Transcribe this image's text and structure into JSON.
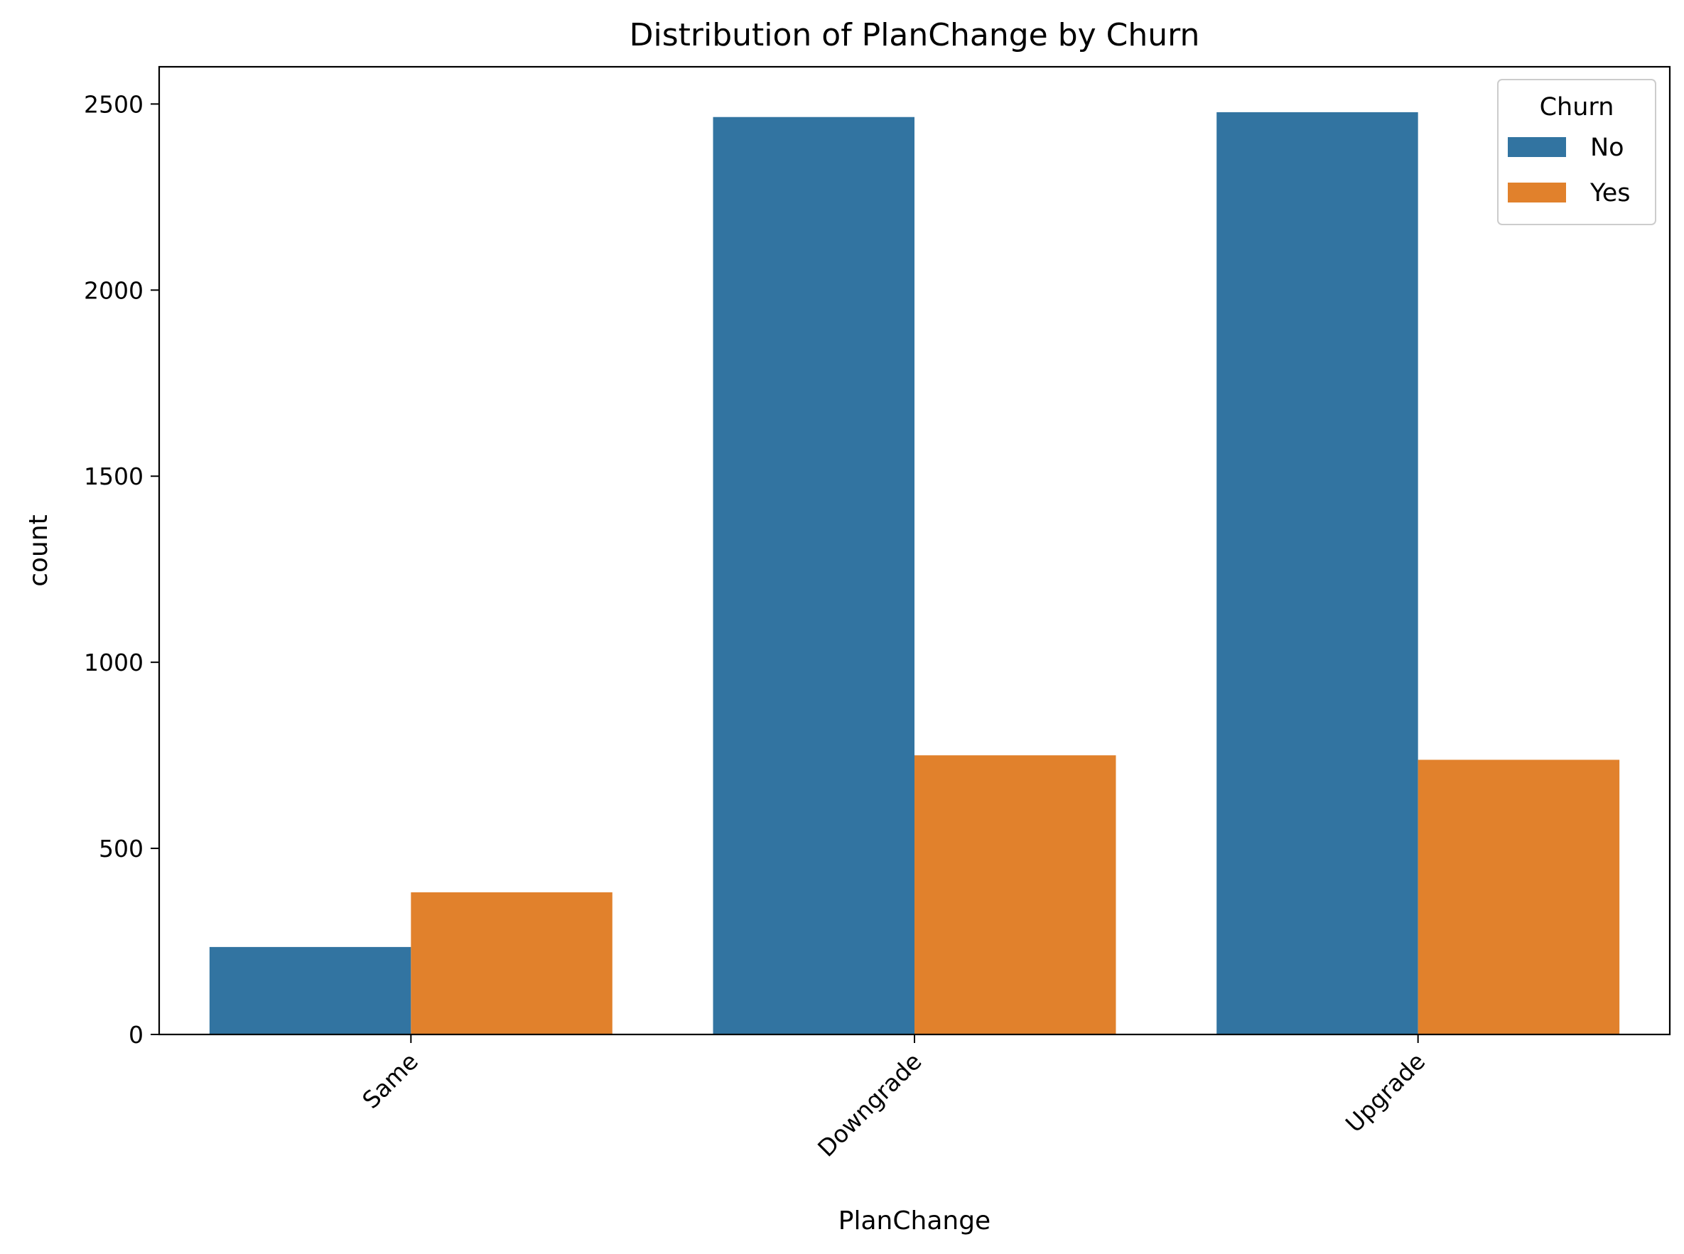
{
  "chart_data": {
    "type": "bar",
    "title": "Distribution of PlanChange by Churn",
    "xlabel": "PlanChange",
    "ylabel": "count",
    "categories": [
      "Same",
      "Downgrade",
      "Upgrade"
    ],
    "series": [
      {
        "name": "No",
        "color": "#3274a1",
        "values": [
          235,
          2465,
          2478
        ]
      },
      {
        "name": "Yes",
        "color": "#e1812c",
        "values": [
          382,
          750,
          738
        ]
      }
    ],
    "ylim": [
      0,
      2600
    ],
    "yticks": [
      0,
      500,
      1000,
      1500,
      2000,
      2500
    ],
    "yticklabels": [
      "0",
      "500",
      "1000",
      "1500",
      "2000",
      "2500"
    ],
    "grid": false,
    "legend": {
      "title": "Churn",
      "placement": "top-right"
    }
  }
}
